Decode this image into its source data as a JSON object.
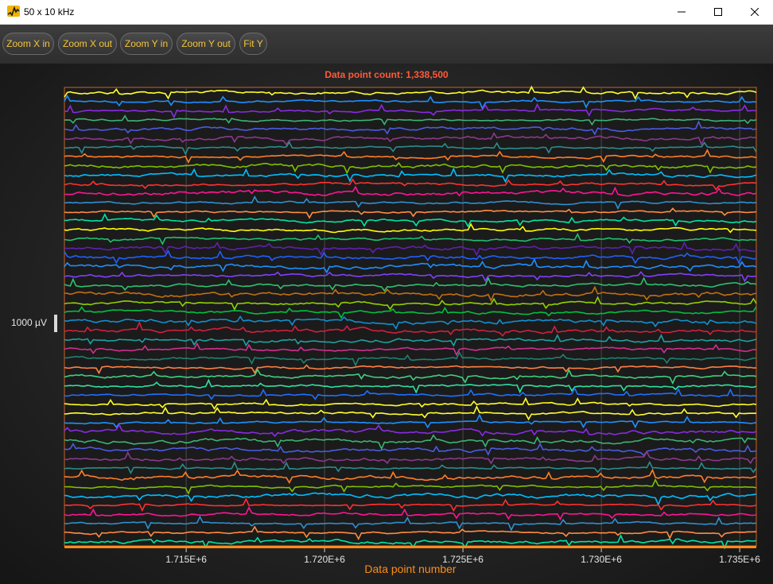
{
  "window": {
    "title": "50 x 10 kHz",
    "controls": [
      "minimize",
      "maximize",
      "close"
    ]
  },
  "toolbar": {
    "buttons": [
      "Zoom X in",
      "Zoom X out",
      "Zoom Y in",
      "Zoom Y out",
      "Fit Y"
    ]
  },
  "chart": {
    "title": "Data point count: 1,338,500",
    "x_axis_label": "Data point number",
    "scale_label": "1000 µV",
    "tick_labels": [
      "1.715E+6",
      "1.720E+6",
      "1.725E+6",
      "1.730E+6",
      "1.735E+6"
    ]
  },
  "chart_data": {
    "type": "line",
    "title": "Data point count: 1,338,500",
    "xlabel": "Data point number",
    "ylabel": "",
    "xlim": [
      1710600,
      1735600
    ],
    "xticks": [
      1715000,
      1720000,
      1725000,
      1730000,
      1735000
    ],
    "channel_count": 50,
    "sample_rate": "10 kHz",
    "scale_bar": "1000 µV",
    "grid": true,
    "colors": [
      "#ffff30",
      "#1e90ff",
      "#8a2be2",
      "#3cb371",
      "#4b5ce0",
      "#8b3a8b",
      "#2e8b8b",
      "#ff7f24",
      "#7fbf00",
      "#00bfff",
      "#ff3030",
      "#ff1493",
      "#2f8fd0",
      "#ff8c40",
      "#00e5a0",
      "#ffff00",
      "#20c070",
      "#6020b0",
      "#2060ff",
      "#1e90ff",
      "#8040ff",
      "#2ec070",
      "#c07010",
      "#90d000",
      "#00c040",
      "#1090d0",
      "#d02040",
      "#1fa0a0",
      "#d03090",
      "#208070",
      "#ff8040",
      "#40d080",
      "#30e0a0",
      "#1e70ff",
      "#ffff20"
    ]
  },
  "colors": {
    "accent": "#f3c43a",
    "title_red": "#ff5a3a",
    "axis_orange": "#ff8c1a",
    "toolbar_bg": "#363636"
  }
}
